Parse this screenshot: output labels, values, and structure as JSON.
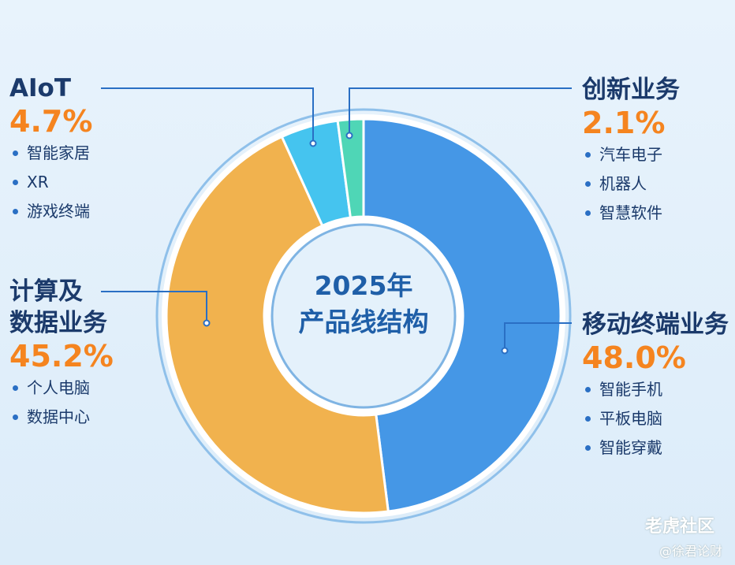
{
  "chart_data": {
    "type": "pie",
    "title": "2025年\n产品线结构",
    "categories": [
      "移动终端业务",
      "计算及\n数据业务",
      "AIoT",
      "创新业务"
    ],
    "values": [
      48.0,
      45.2,
      4.7,
      2.1
    ],
    "value_labels": [
      "48.0%",
      "45.2%",
      "4.7%",
      "2.1%"
    ],
    "colors": [
      "#4597e6",
      "#f1b24e",
      "#45c4ef",
      "#4fd6b6"
    ],
    "items": [
      [
        "智能手机",
        "平板电脑",
        "智能穿戴"
      ],
      [
        "个人电脑",
        "数据中心"
      ],
      [
        "智能家居",
        "XR",
        "游戏终端"
      ],
      [
        "汽车电子",
        "机器人",
        "智慧软件"
      ]
    ],
    "watermark": [
      "老虎社区",
      "@徐君论财"
    ]
  }
}
